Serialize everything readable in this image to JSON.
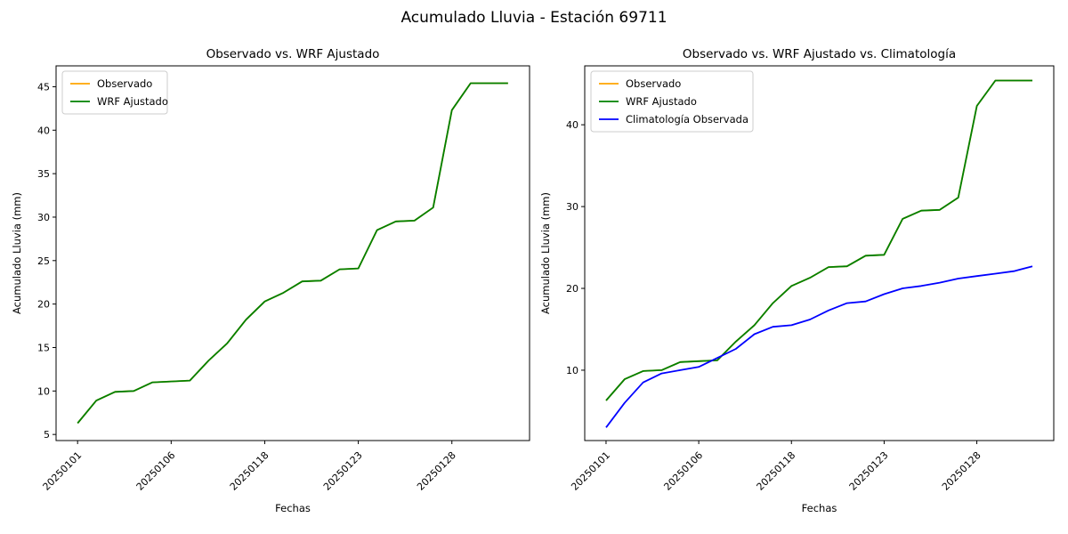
{
  "figure": {
    "suptitle": "Acumulado Lluvia - Estación 69711",
    "background": "#ffffff"
  },
  "colors": {
    "observado": "#FFA500",
    "wrf_ajustado": "#008000",
    "climatologia": "#0000FF",
    "spine": "#000000",
    "tick_text": "#000000",
    "legend_border": "#cccccc",
    "legend_fill": "#ffffff"
  },
  "chart_data": [
    {
      "type": "line",
      "title": "Observado vs. WRF Ajustado",
      "xlabel": "Fechas",
      "ylabel": "Acumulado Lluvia (mm)",
      "grid": false,
      "legend_position": "upper-left",
      "n_points": 24,
      "xlim": [
        -1.15,
        24.15
      ],
      "ylim": [
        4.3,
        47.4
      ],
      "y_ticks": [
        5,
        10,
        15,
        20,
        25,
        30,
        35,
        40,
        45
      ],
      "x_tick_positions": [
        0,
        5,
        10,
        15,
        20
      ],
      "x_tick_labels": [
        "20250101",
        "20250106",
        "20250118",
        "20250123",
        "20250128"
      ],
      "x_tick_rotation": 45,
      "series": [
        {
          "name": "Observado",
          "color": "#FFA500",
          "note": "orange line is not visible anywhere in the plot; it coincides with / is hidden behind the WRF Ajustado line",
          "values": [
            6.3,
            8.9,
            9.9,
            10.0,
            11.0,
            11.1,
            11.2,
            13.5,
            15.5,
            18.2,
            20.3,
            21.3,
            22.6,
            22.7,
            24.0,
            24.1,
            28.5,
            29.5,
            29.6,
            31.1,
            42.3,
            45.4,
            45.4,
            45.4
          ]
        },
        {
          "name": "WRF Ajustado",
          "color": "#008000",
          "values": [
            6.3,
            8.9,
            9.9,
            10.0,
            11.0,
            11.1,
            11.2,
            13.5,
            15.5,
            18.2,
            20.3,
            21.3,
            22.6,
            22.7,
            24.0,
            24.1,
            28.5,
            29.5,
            29.6,
            31.1,
            42.3,
            45.4,
            45.4,
            45.4
          ]
        }
      ]
    },
    {
      "type": "line",
      "title": "Observado vs. WRF Ajustado vs. Climatología",
      "xlabel": "Fechas",
      "ylabel": "Acumulado Lluvia (mm)",
      "grid": false,
      "legend_position": "upper-left",
      "n_points": 24,
      "xlim": [
        -1.15,
        24.15
      ],
      "ylim": [
        1.4,
        47.2
      ],
      "y_ticks": [
        10,
        20,
        30,
        40
      ],
      "x_tick_positions": [
        0,
        5,
        10,
        15,
        20
      ],
      "x_tick_labels": [
        "20250101",
        "20250106",
        "20250118",
        "20250123",
        "20250128"
      ],
      "x_tick_rotation": 45,
      "series": [
        {
          "name": "Observado",
          "color": "#FFA500",
          "note": "orange line is not visible anywhere in the plot; it coincides with / is hidden behind the WRF Ajustado line",
          "values": [
            6.3,
            8.9,
            9.9,
            10.0,
            11.0,
            11.1,
            11.2,
            13.5,
            15.5,
            18.2,
            20.3,
            21.3,
            22.6,
            22.7,
            24.0,
            24.1,
            28.5,
            29.5,
            29.6,
            31.1,
            42.3,
            45.4,
            45.4,
            45.4
          ]
        },
        {
          "name": "WRF Ajustado",
          "color": "#008000",
          "values": [
            6.3,
            8.9,
            9.9,
            10.0,
            11.0,
            11.1,
            11.2,
            13.5,
            15.5,
            18.2,
            20.3,
            21.3,
            22.6,
            22.7,
            24.0,
            24.1,
            28.5,
            29.5,
            29.6,
            31.1,
            42.3,
            45.4,
            45.4,
            45.4
          ]
        },
        {
          "name": "Climatología Observada",
          "color": "#0000FF",
          "values": [
            3.0,
            6.0,
            8.5,
            9.6,
            10.0,
            10.4,
            11.5,
            12.6,
            14.4,
            15.3,
            15.5,
            16.2,
            17.3,
            18.2,
            18.4,
            19.3,
            20.0,
            20.3,
            20.7,
            21.2,
            21.5,
            21.8,
            22.1,
            22.7
          ]
        }
      ]
    }
  ]
}
